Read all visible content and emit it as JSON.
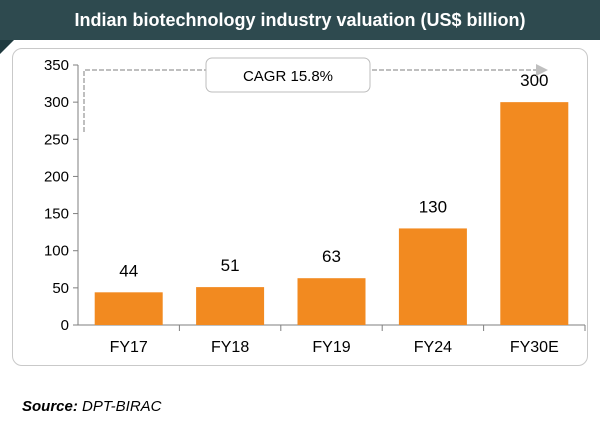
{
  "header": {
    "title": "Indian biotechnology industry valuation (US$ billion)"
  },
  "annotation": {
    "cagr_label": "CAGR 15.8%"
  },
  "source": {
    "label": "Source:",
    "value": "DPT-BIRAC"
  },
  "colors": {
    "bar": "#f28a20",
    "header": "#2e4a4f",
    "axis": "#7f7f7f",
    "arrow": "#bfbfbf"
  },
  "chart_data": {
    "type": "bar",
    "title": "Indian biotechnology industry valuation (US$ billion)",
    "categories": [
      "FY17",
      "FY18",
      "FY19",
      "FY24",
      "FY30E"
    ],
    "values": [
      44,
      51,
      63,
      130,
      300
    ],
    "data_labels": [
      "44",
      "51",
      "63",
      "130",
      "300"
    ],
    "yticks": [
      0,
      50,
      100,
      150,
      200,
      250,
      300,
      350
    ],
    "ylim": [
      0,
      350
    ],
    "xlabel": "",
    "ylabel": "",
    "grid": false,
    "annotation": "CAGR 15.8%"
  }
}
